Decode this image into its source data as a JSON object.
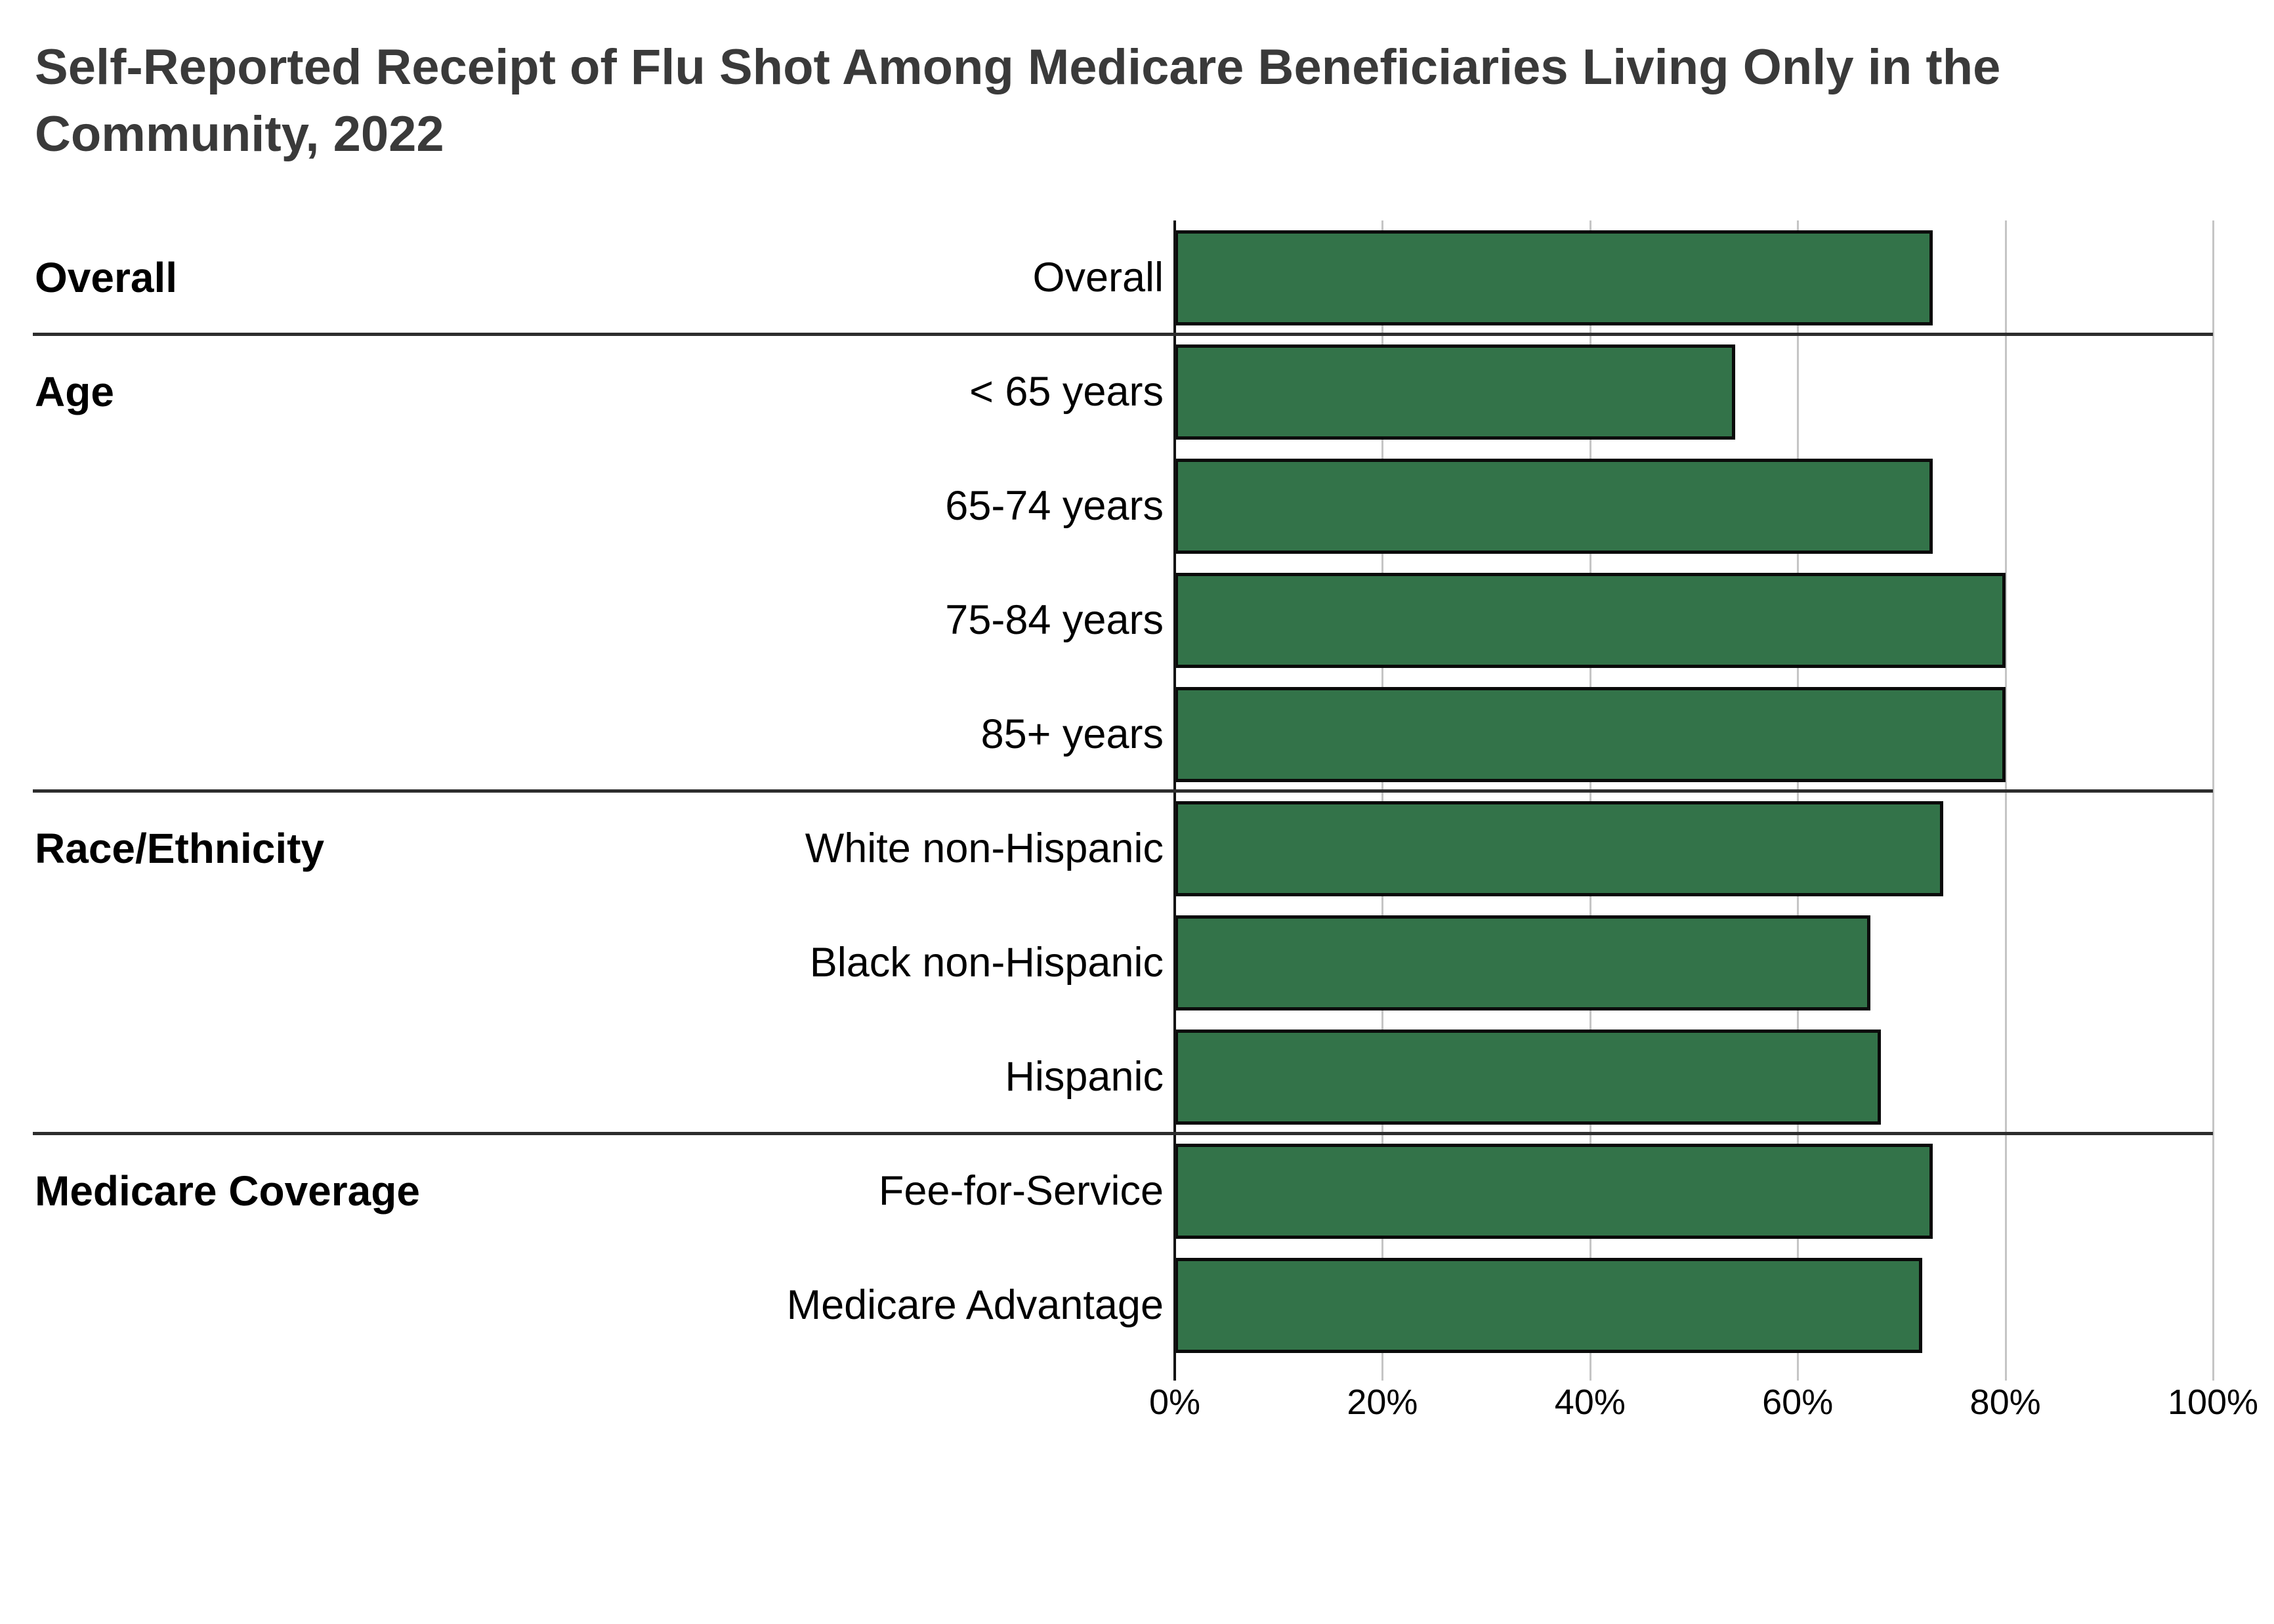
{
  "chart_data": {
    "type": "bar",
    "orientation": "horizontal",
    "title": "Self-Reported Receipt of Flu Shot Among Medicare Beneficiaries Living Only in the Community, 2022",
    "xlabel": "",
    "ylabel": "",
    "unit": "%",
    "xlim": [
      0,
      100
    ],
    "grid": true,
    "ticks": [
      {
        "label": "0%",
        "value": 0
      },
      {
        "label": "20%",
        "value": 20
      },
      {
        "label": "40%",
        "value": 40
      },
      {
        "label": "60%",
        "value": 60
      },
      {
        "label": "80%",
        "value": 80
      },
      {
        "label": "100%",
        "value": 100
      }
    ],
    "groups": [
      {
        "label": "Overall",
        "items": [
          {
            "label": "Overall",
            "value": 73
          }
        ]
      },
      {
        "label": "Age",
        "items": [
          {
            "label": "< 65 years",
            "value": 54
          },
          {
            "label": "65-74 years",
            "value": 73
          },
          {
            "label": "75-84 years",
            "value": 80
          },
          {
            "label": "85+ years",
            "value": 80
          }
        ]
      },
      {
        "label": "Race/Ethnicity",
        "items": [
          {
            "label": "White non-Hispanic",
            "value": 74
          },
          {
            "label": "Black non-Hispanic",
            "value": 67
          },
          {
            "label": "Hispanic",
            "value": 68
          }
        ]
      },
      {
        "label": "Medicare Coverage",
        "items": [
          {
            "label": "Fee-for-Service",
            "value": 73
          },
          {
            "label": "Medicare Advantage",
            "value": 72
          }
        ]
      }
    ]
  },
  "colors": {
    "background": "#ffffff",
    "bar_fill": "#337349",
    "bar_border": "#0a0a0a",
    "gridline": "#c5c5c5",
    "axis_line": "#111111",
    "separator": "#2d2d2d",
    "title_text": "#3a3a3a",
    "label_text": "#000000"
  }
}
